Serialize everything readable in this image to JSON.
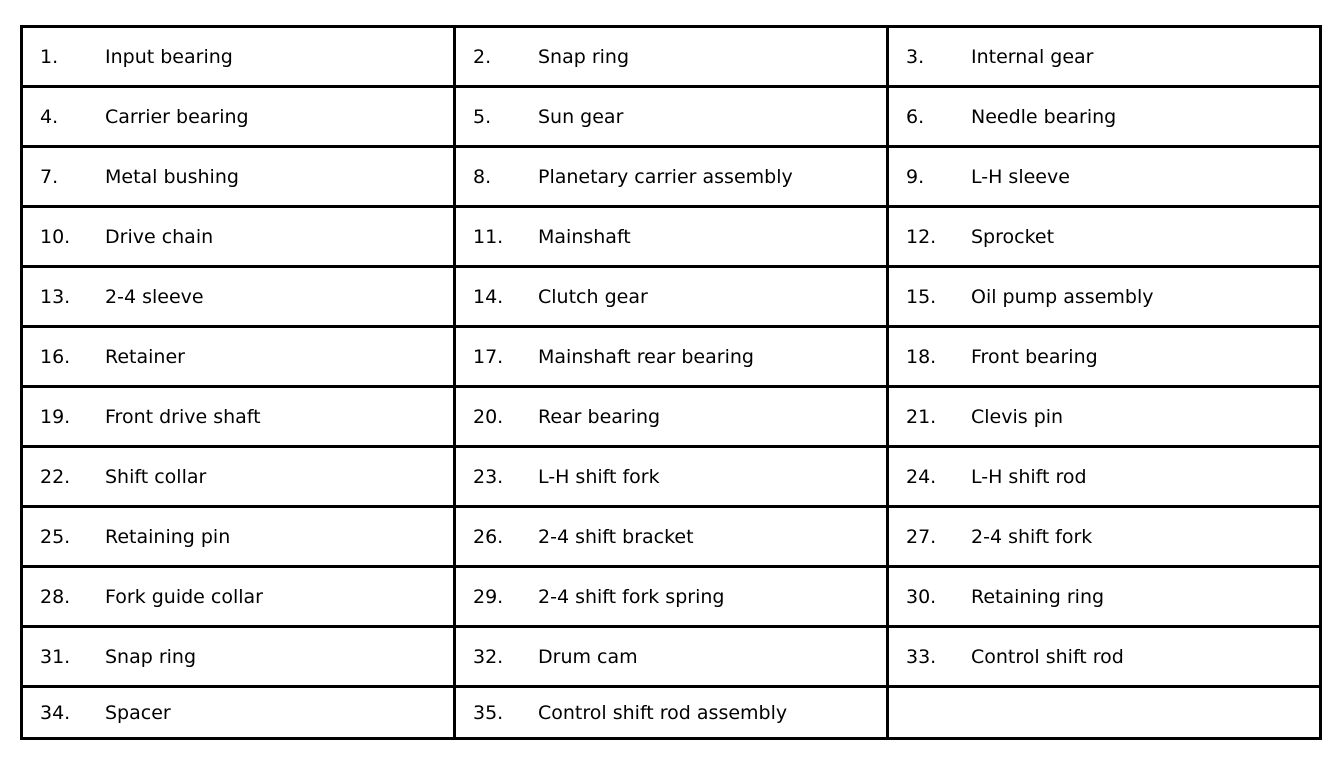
{
  "parts": [
    {
      "num": "1.",
      "label": "Input bearing"
    },
    {
      "num": "2.",
      "label": "Snap ring"
    },
    {
      "num": "3.",
      "label": "Internal gear"
    },
    {
      "num": "4.",
      "label": "Carrier bearing"
    },
    {
      "num": "5.",
      "label": "Sun gear"
    },
    {
      "num": "6.",
      "label": "Needle bearing"
    },
    {
      "num": "7.",
      "label": "Metal bushing"
    },
    {
      "num": "8.",
      "label": "Planetary carrier assembly"
    },
    {
      "num": "9.",
      "label": "L-H sleeve"
    },
    {
      "num": "10.",
      "label": "Drive chain"
    },
    {
      "num": "11.",
      "label": "Mainshaft"
    },
    {
      "num": "12.",
      "label": "Sprocket"
    },
    {
      "num": "13.",
      "label": "2-4 sleeve"
    },
    {
      "num": "14.",
      "label": "Clutch gear"
    },
    {
      "num": "15.",
      "label": "Oil pump assembly"
    },
    {
      "num": "16.",
      "label": "Retainer"
    },
    {
      "num": "17.",
      "label": "Mainshaft rear bearing"
    },
    {
      "num": "18.",
      "label": "Front bearing"
    },
    {
      "num": "19.",
      "label": "Front drive shaft"
    },
    {
      "num": "20.",
      "label": "Rear bearing"
    },
    {
      "num": "21.",
      "label": "Clevis pin"
    },
    {
      "num": "22.",
      "label": "Shift collar"
    },
    {
      "num": "23.",
      "label": "L-H shift fork"
    },
    {
      "num": "24.",
      "label": "L-H shift rod"
    },
    {
      "num": "25.",
      "label": "Retaining pin"
    },
    {
      "num": "26.",
      "label": "2-4 shift bracket"
    },
    {
      "num": "27.",
      "label": "2-4 shift fork"
    },
    {
      "num": "28.",
      "label": "Fork guide collar"
    },
    {
      "num": "29.",
      "label": "2-4 shift fork spring"
    },
    {
      "num": "30.",
      "label": "Retaining ring"
    },
    {
      "num": "31.",
      "label": "Snap ring"
    },
    {
      "num": "32.",
      "label": "Drum cam"
    },
    {
      "num": "33.",
      "label": "Control shift rod"
    },
    {
      "num": "34.",
      "label": "Spacer"
    },
    {
      "num": "35.",
      "label": "Control shift rod assembly"
    }
  ]
}
